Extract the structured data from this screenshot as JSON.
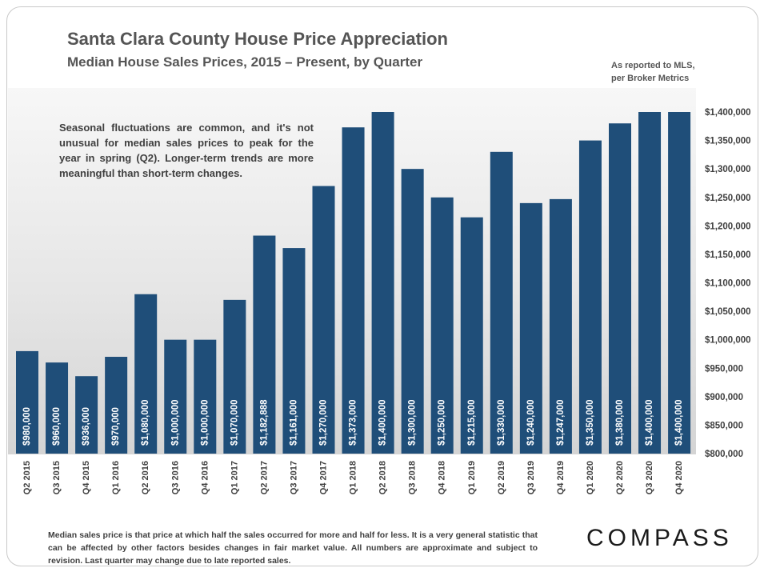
{
  "header": {
    "title": "Santa Clara County House Price Appreciation",
    "subtitle": "Median House Sales Prices, 2015 – Present, by Quarter"
  },
  "source_note": {
    "line1": "As reported to MLS,",
    "line2": "per Broker Metrics"
  },
  "annotation": "Seasonal fluctuations are common, and it's not unusual for median sales prices to peak for the year in spring (Q2). Longer-term trends are more meaningful than short-term changes.",
  "footnote": "Median sales price is that price at which half the sales occurred for more and half for less. It is a very general statistic that can be affected by other factors besides changes in fair market value. All numbers are approximate and subject to revision. Last quarter may change due to late reported sales.",
  "brand": "COMPASS",
  "colors": {
    "bar": "#1f4e79",
    "bar_label": "#ffffff",
    "axis_text": "#3f3f3f"
  },
  "chart_data": {
    "type": "bar",
    "categories": [
      "Q2 2015",
      "Q3 2015",
      "Q4 2015",
      "Q1 2016",
      "Q2 2016",
      "Q3 2016",
      "Q4 2016",
      "Q1 2017",
      "Q2 2017",
      "Q3 2017",
      "Q4 2017",
      "Q1 2018",
      "Q2 2018",
      "Q3 2018",
      "Q4 2018",
      "Q1 2019",
      "Q2 2019",
      "Q3 2019",
      "Q4 2019",
      "Q1 2020",
      "Q2 2020",
      "Q3 2020",
      "Q4 2020"
    ],
    "values": [
      980000,
      960000,
      936000,
      970000,
      1080000,
      1000000,
      1000000,
      1070000,
      1182888,
      1161000,
      1270000,
      1373000,
      1400000,
      1300000,
      1250000,
      1215000,
      1330000,
      1240000,
      1247000,
      1350000,
      1380000,
      1400000,
      1400000
    ],
    "labels": [
      "$980,000",
      "$960,000",
      "$936,000",
      "$970,000",
      "$1,080,000",
      "$1,000,000",
      "$1,000,000",
      "$1,070,000",
      "$1,182,888",
      "$1,161,000",
      "$1,270,000",
      "$1,373,000",
      "$1,400,000",
      "$1,300,000",
      "$1,250,000",
      "$1,215,000",
      "$1,330,000",
      "$1,240,000",
      "$1,247,000",
      "$1,350,000",
      "$1,380,000",
      "$1,400,000",
      "$1,400,000"
    ],
    "ylim": [
      800000,
      1400000
    ],
    "y_ticks": [
      800000,
      850000,
      900000,
      950000,
      1000000,
      1050000,
      1100000,
      1150000,
      1200000,
      1250000,
      1300000,
      1350000,
      1400000
    ],
    "y_tick_labels": [
      "$800,000",
      "$850,000",
      "$900,000",
      "$950,000",
      "$1,000,000",
      "$1,050,000",
      "$1,100,000",
      "$1,150,000",
      "$1,200,000",
      "$1,250,000",
      "$1,300,000",
      "$1,350,000",
      "$1,400,000"
    ],
    "y_axis_side": "right",
    "grid": false
  }
}
